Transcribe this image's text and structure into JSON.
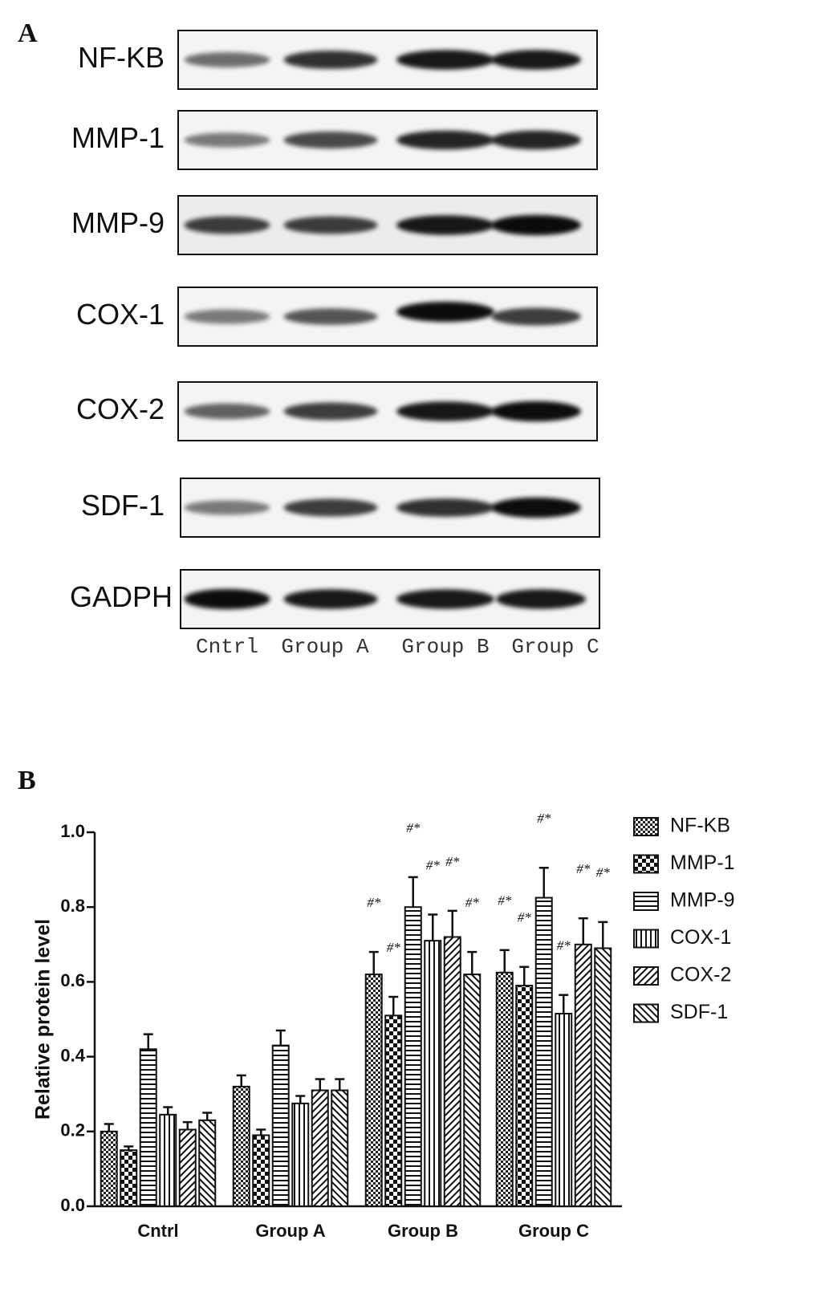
{
  "panel_a": {
    "label": "A",
    "rows": [
      "NF-KB",
      "MMP-1",
      "MMP-9",
      "COX-1",
      "COX-2",
      "SDF-1",
      "GADPH"
    ],
    "lanes": [
      "Cntrl",
      "Group A",
      "Group B",
      "Group C"
    ]
  },
  "chart_data": {
    "type": "bar",
    "panel_label": "B",
    "y_label": "Relative protein level",
    "categories": [
      "Cntrl",
      "Group A",
      "Group B",
      "Group C"
    ],
    "ylim": [
      0,
      1.0
    ],
    "yticks": [
      {
        "value": 0,
        "label": "0.0"
      },
      0.2,
      0.4,
      0.6,
      0.8,
      {
        "value": 1.0,
        "label": "1.0"
      }
    ],
    "series": [
      {
        "name": "NF-KB",
        "pattern": "fine-check",
        "values": [
          0.2,
          0.32,
          0.62,
          0.625
        ],
        "errors": [
          0.02,
          0.03,
          0.06,
          0.06
        ],
        "annotations": [
          null,
          null,
          "#*",
          "#*"
        ]
      },
      {
        "name": "MMP-1",
        "pattern": "check",
        "values": [
          0.15,
          0.19,
          0.51,
          0.59
        ],
        "errors": [
          0.01,
          0.015,
          0.05,
          0.05
        ],
        "annotations": [
          null,
          null,
          "#*",
          "#*"
        ]
      },
      {
        "name": "MMP-9",
        "pattern": "horizontal",
        "values": [
          0.42,
          0.43,
          0.8,
          0.825
        ],
        "errors": [
          0.04,
          0.04,
          0.08,
          0.08
        ],
        "annotations": [
          null,
          null,
          "#*",
          "#*"
        ]
      },
      {
        "name": "COX-1",
        "pattern": "vertical",
        "values": [
          0.245,
          0.275,
          0.71,
          0.515
        ],
        "errors": [
          0.02,
          0.02,
          0.07,
          0.05
        ],
        "annotations": [
          null,
          null,
          "#*",
          "#*"
        ]
      },
      {
        "name": "COX-2",
        "pattern": "diagonal",
        "values": [
          0.205,
          0.31,
          0.72,
          0.7
        ],
        "errors": [
          0.02,
          0.03,
          0.07,
          0.07
        ],
        "annotations": [
          null,
          null,
          "#*",
          "#*"
        ]
      },
      {
        "name": "SDF-1",
        "pattern": "antidiagonal",
        "values": [
          0.23,
          0.31,
          0.62,
          0.69
        ],
        "errors": [
          0.02,
          0.03,
          0.06,
          0.07
        ],
        "annotations": [
          null,
          null,
          "#*",
          "#*"
        ]
      }
    ]
  }
}
